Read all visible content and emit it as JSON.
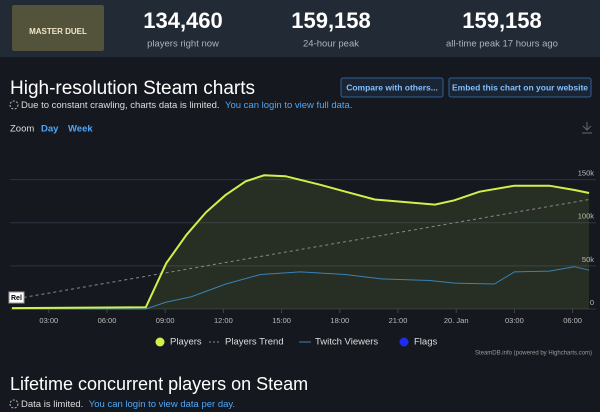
{
  "header": {
    "game": "MASTER DUEL",
    "stats": [
      {
        "value": "134,460",
        "label": "players right now"
      },
      {
        "value": "159,158",
        "label": "24-hour peak"
      },
      {
        "value": "159,158",
        "label": "all-time peak 17 hours ago"
      }
    ]
  },
  "section": {
    "title": "High-resolution Steam charts",
    "buttons": [
      "Compare with others...",
      "Embed this chart on your website"
    ],
    "notice": "Due to constant crawling, charts data is limited.",
    "notice_link": "You can login to view full data.",
    "zoom_label": "Zoom",
    "zoom_options": [
      "Day",
      "Week"
    ]
  },
  "chart_data": {
    "type": "line",
    "xlim": [
      1,
      31
    ],
    "xticks": [
      {
        "value": 3,
        "label": "03:00"
      },
      {
        "value": 6,
        "label": "06:00"
      },
      {
        "value": 9,
        "label": "09:00"
      },
      {
        "value": 12,
        "label": "12:00"
      },
      {
        "value": 15,
        "label": "15:00"
      },
      {
        "value": 18,
        "label": "18:00"
      },
      {
        "value": 21,
        "label": "21:00"
      },
      {
        "value": 24,
        "label": "20. Jan"
      },
      {
        "value": 27,
        "label": "03:00"
      },
      {
        "value": 30,
        "label": "06:00"
      }
    ],
    "ylim": [
      0,
      160000
    ],
    "yticks": [
      0,
      {
        "value": 50000,
        "label": "50k"
      },
      {
        "value": 100000,
        "label": "100k"
      },
      {
        "value": 150000,
        "label": "150k"
      }
    ],
    "grid": true,
    "series": [
      {
        "name": "Players",
        "color": "#d2f04a",
        "area": true,
        "x": [
          1.1,
          8.0,
          9.05,
          10.1,
          11.1,
          12.1,
          13.15,
          14.1,
          15.2,
          17.0,
          18.3,
          19.8,
          21.4,
          22.9,
          23.9,
          25.2,
          27.0,
          28.8,
          30.1,
          30.85
        ],
        "values": [
          1000,
          2000,
          53000,
          86000,
          112000,
          132000,
          148000,
          155000,
          154000,
          144000,
          136000,
          127000,
          124000,
          121000,
          126000,
          136000,
          143000,
          143000,
          138000,
          134460
        ]
      },
      {
        "name": "Players Trend",
        "color": "#888888",
        "dashed": true,
        "x": [
          1.1,
          30.85
        ],
        "values": [
          11000,
          127000
        ]
      },
      {
        "name": "Twitch Viewers",
        "color": "#3a82b5",
        "x": [
          1.1,
          8.0,
          9.05,
          10.33,
          12.13,
          13.92,
          15.97,
          18.28,
          20.08,
          22.64,
          23.92,
          25.97,
          27.0,
          28.8,
          30.08,
          30.85
        ],
        "values": [
          0,
          0,
          8000,
          14000,
          29000,
          40000,
          43000,
          40000,
          35000,
          33000,
          30000,
          29000,
          43000,
          44000,
          49000,
          45000
        ]
      },
      {
        "name": "Flags",
        "color": "#1c2cf0",
        "x": [],
        "values": []
      }
    ],
    "annotation": "Rel",
    "credits": "SteamDB.info (powered by Highcharts.com)"
  },
  "lifetime": {
    "title": "Lifetime concurrent players on Steam",
    "notice": "Data is limited.",
    "notice_link": "You can login to view data per day."
  }
}
